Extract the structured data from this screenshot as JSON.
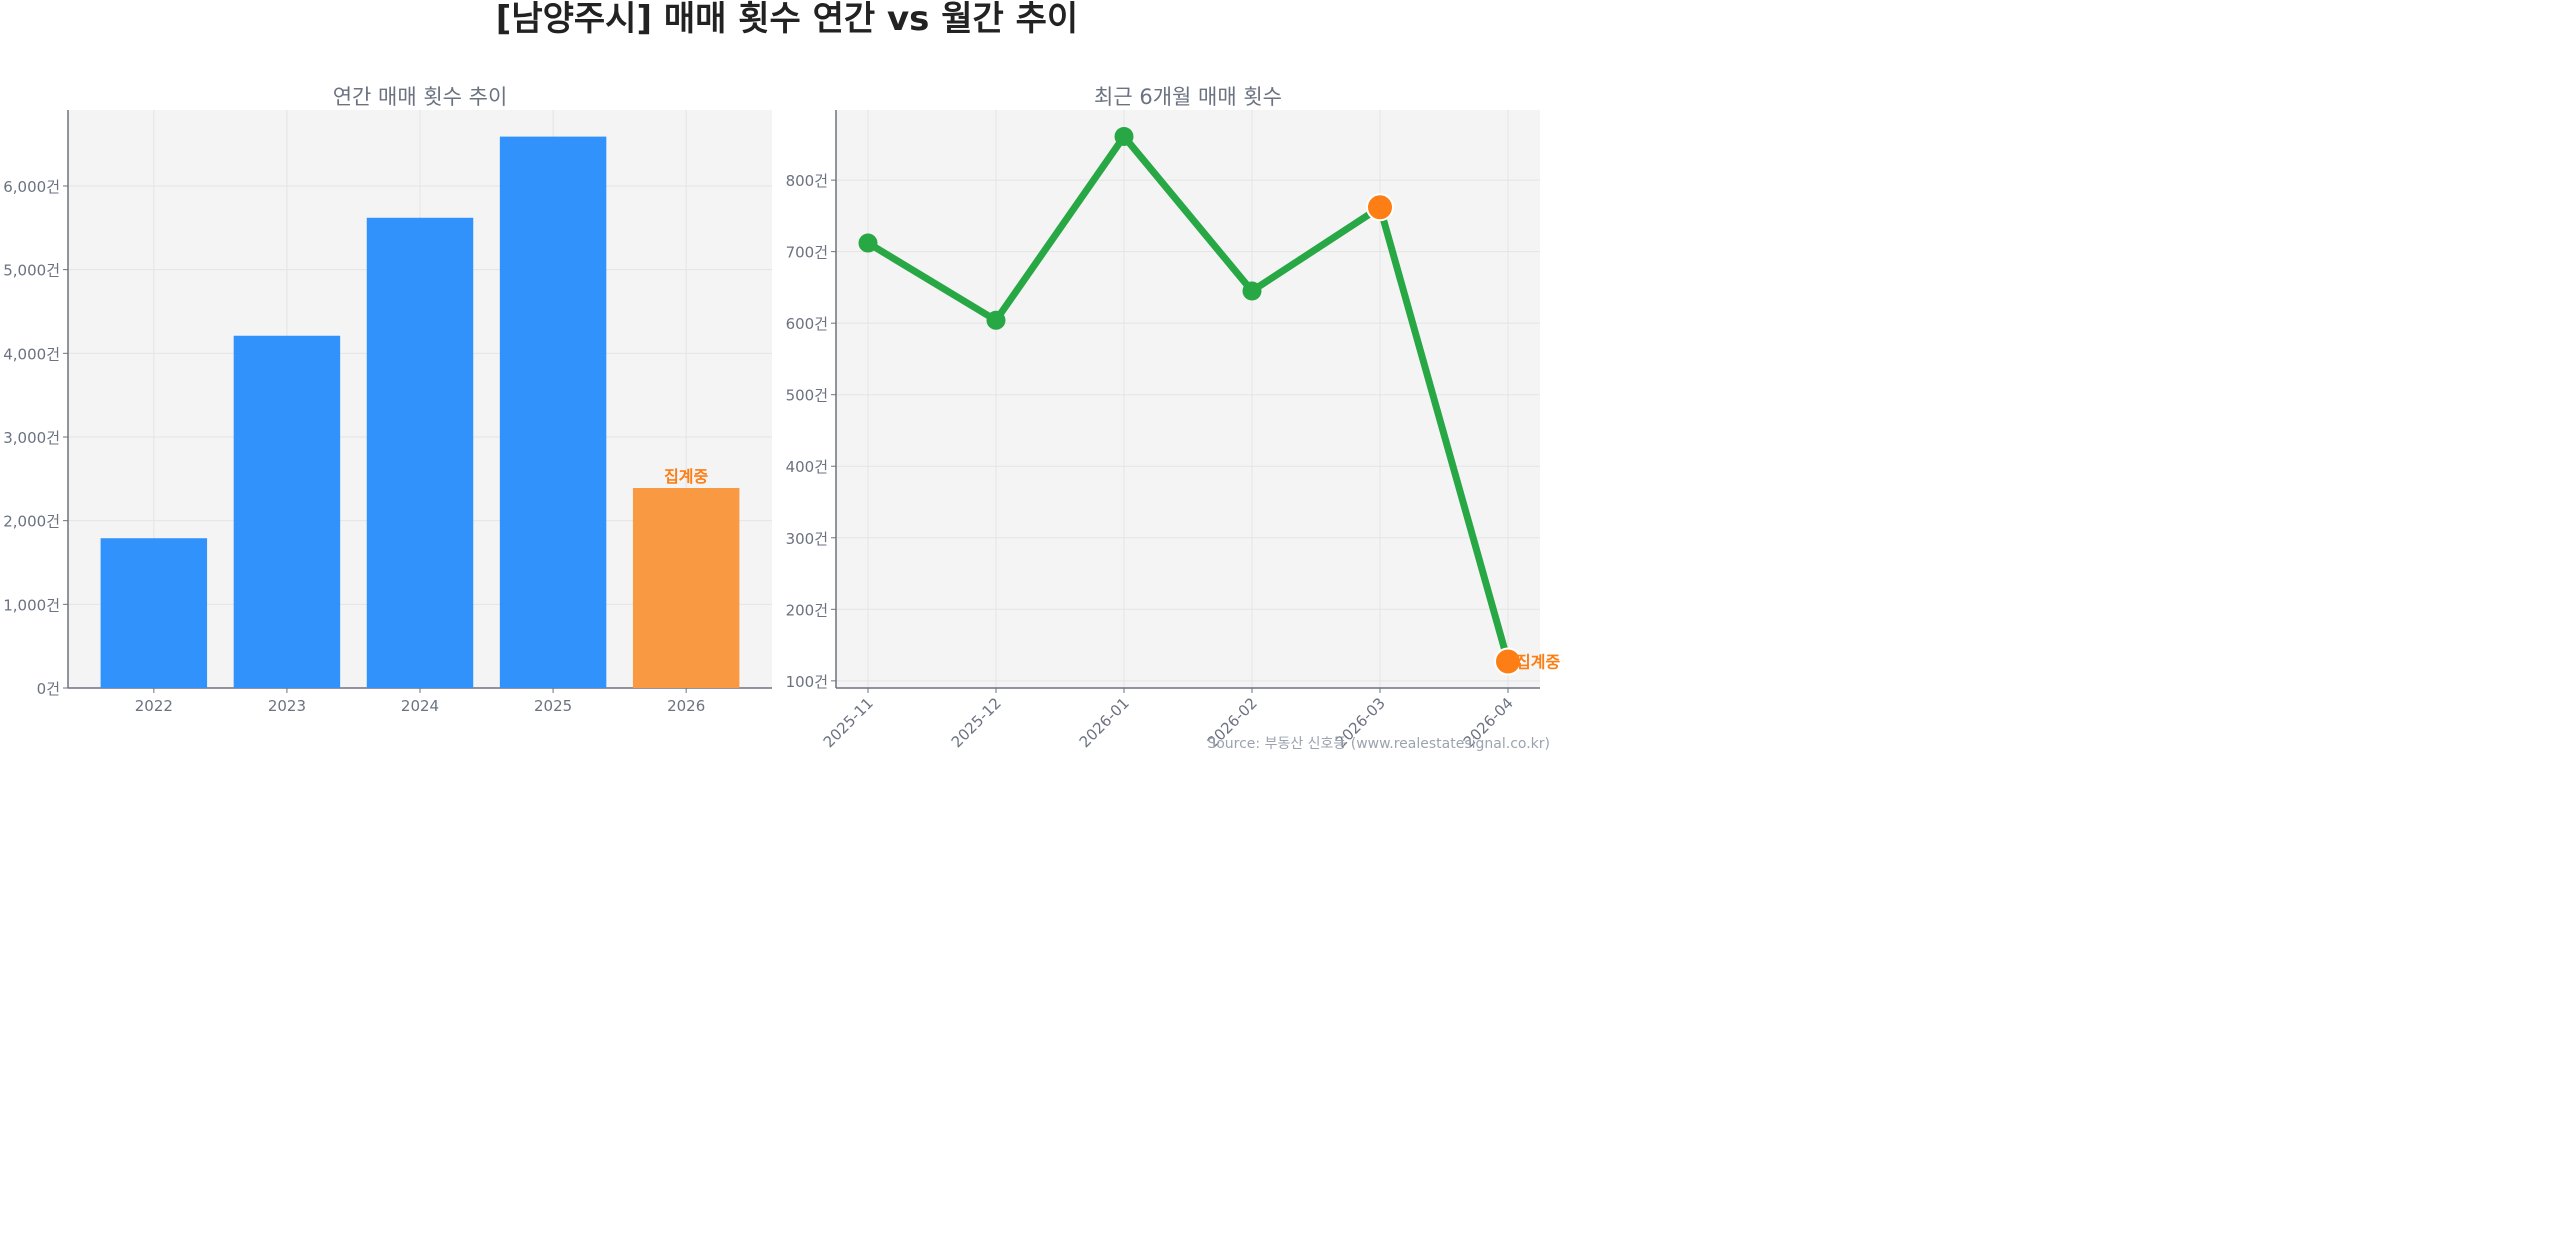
{
  "title": "[남양주시] 매매 횟수 연간 vs 월간 추이",
  "source": "Source: 부동산 신호등 (www.realestatesignal.co.kr)",
  "colors": {
    "bar": "#3192fc",
    "bar_partial": "#f99942",
    "line": "#28a745",
    "marker_partial": "#fd7e14",
    "label_partial": "#fd7e14",
    "axes_bg": "#f4f4f4",
    "grid": "#e4e4e4",
    "text": "#6b7280"
  },
  "chart_data": [
    {
      "type": "bar",
      "title": "연간 매매 횟수 추이",
      "xlabel": "",
      "ylabel": "",
      "categories": [
        "2022",
        "2023",
        "2024",
        "2025",
        "2026"
      ],
      "values": [
        1790,
        4210,
        5620,
        6590,
        2390
      ],
      "partial": [
        false,
        false,
        false,
        false,
        true
      ],
      "annotation": {
        "category": "2026",
        "text": "집계중"
      },
      "ylim": [
        0,
        6908
      ],
      "yticks": [
        0,
        1000,
        2000,
        3000,
        4000,
        5000,
        6000
      ],
      "ytick_labels": [
        "0건",
        "1,000건",
        "2,000건",
        "3,000건",
        "4,000건",
        "5,000건",
        "6,000건"
      ],
      "grid": true
    },
    {
      "type": "line",
      "title": "최근 6개월 매매 횟수",
      "xlabel": "",
      "ylabel": "",
      "categories": [
        "2025-11",
        "2025-12",
        "2026-01",
        "2026-02",
        "2026-03",
        "2026-04"
      ],
      "values": [
        712,
        604,
        861,
        645,
        762,
        127
      ],
      "highlight": [
        false,
        false,
        false,
        false,
        true,
        true
      ],
      "annotation": {
        "category": "2026-04",
        "text": "집계중"
      },
      "ylim": [
        90,
        898
      ],
      "yticks": [
        100,
        200,
        300,
        400,
        500,
        600,
        700,
        800
      ],
      "ytick_labels": [
        "100건",
        "200건",
        "300건",
        "400건",
        "500건",
        "600건",
        "700건",
        "800건"
      ],
      "grid": true
    }
  ]
}
